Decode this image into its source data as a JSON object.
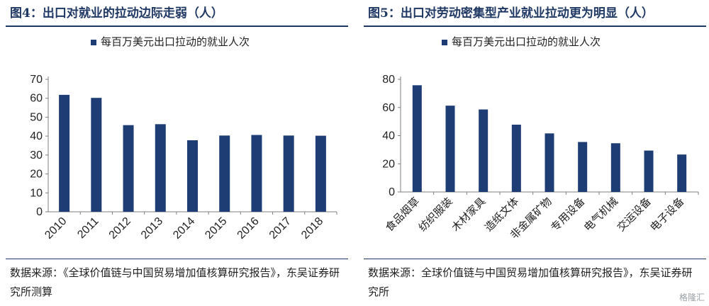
{
  "figures": [
    {
      "title": "图4：出口对就业的拉动边际走弱（人）",
      "source": "数据来源：《全球价值链与中国贸易增加值核算研究报告》，东吴证券研究所测算"
    },
    {
      "title": "图5：出口对劳动密集型产业就业拉动更为明显（人）",
      "source": "数据来源：全球价值链与中国贸易增加值核算研究报告》，东吴证券研究所"
    }
  ],
  "chart_data": [
    {
      "type": "bar",
      "categories": [
        "2010",
        "2011",
        "2012",
        "2013",
        "2014",
        "2015",
        "2016",
        "2017",
        "2018"
      ],
      "series": [
        {
          "name": "每百万美元出口拉动的就业人次",
          "values": [
            61.8,
            60.2,
            45.8,
            46.3,
            37.8,
            40.3,
            40.6,
            40.3,
            40.2
          ]
        }
      ],
      "yticks": [
        0,
        10,
        20,
        30,
        40,
        50,
        60,
        70
      ],
      "ylim": [
        0,
        70
      ],
      "legend": "top-center",
      "bar_color": "#1f3d75",
      "grid": false
    },
    {
      "type": "bar",
      "categories": [
        "食品烟草",
        "纺织服装",
        "木材家具",
        "造纸文体",
        "非金属矿物",
        "专用设备",
        "电气机械",
        "交运设备",
        "电子设备"
      ],
      "series": [
        {
          "name": "每百万美元出口拉动的就业人次",
          "values": [
            75.8,
            61.3,
            58.6,
            47.8,
            41.6,
            35.5,
            34.6,
            29.4,
            26.6
          ]
        }
      ],
      "yticks": [
        0,
        20,
        40,
        60,
        80
      ],
      "ylim": [
        0,
        80
      ],
      "legend": "top-center",
      "bar_color": "#1f3d75",
      "grid": false
    }
  ],
  "watermark": "格隆汇"
}
